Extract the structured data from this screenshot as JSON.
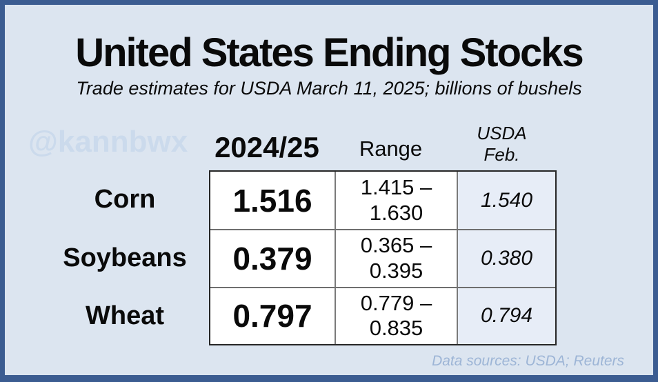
{
  "page": {
    "title": "United States Ending Stocks",
    "subtitle": "Trade estimates for USDA March 11, 2025; billions of bushels",
    "watermark": "@kannbwx",
    "footer": "Data sources: USDA; Reuters"
  },
  "table": {
    "header": {
      "col_estimate": "2024/25",
      "col_range": "Range",
      "col_usda_line1": "USDA",
      "col_usda_line2": "Feb."
    },
    "rows": [
      {
        "label": "Corn",
        "value": "1.516",
        "range_line1": "1.415 –",
        "range_line2": "1.630",
        "usda_feb": "1.540"
      },
      {
        "label": "Soybeans",
        "value": "0.379",
        "range_line1": "0.365 –",
        "range_line2": "0.395",
        "usda_feb": "0.380"
      },
      {
        "label": "Wheat",
        "value": "0.797",
        "range_line1": "0.779 –",
        "range_line2": "0.835",
        "usda_feb": "0.794"
      }
    ]
  },
  "chart_data": {
    "type": "table",
    "title": "United States Ending Stocks",
    "subtitle": "Trade estimates for USDA March 11, 2025; billions of bushels",
    "unit": "billions of bushels",
    "columns": [
      "Commodity",
      "2024/25",
      "Range",
      "USDA Feb."
    ],
    "rows": [
      {
        "commodity": "Corn",
        "estimate_2024_25": 1.516,
        "range_low": 1.415,
        "range_high": 1.63,
        "usda_feb": 1.54
      },
      {
        "commodity": "Soybeans",
        "estimate_2024_25": 0.379,
        "range_low": 0.365,
        "range_high": 0.395,
        "usda_feb": 0.38
      },
      {
        "commodity": "Wheat",
        "estimate_2024_25": 0.797,
        "range_low": 0.779,
        "range_high": 0.835,
        "usda_feb": 0.794
      }
    ]
  },
  "colors": {
    "page_background": "#dce5f0",
    "frame_border": "#3b5c91",
    "table_cell_background": "#ffffff",
    "usda_column_background": "#e7edf7",
    "outer_grid_line": "#262626",
    "inner_grid_line": "#7a7a7a",
    "watermark_text": "#cbdaec",
    "footer_text": "#9db5d6",
    "text": "#0a0a0a"
  }
}
